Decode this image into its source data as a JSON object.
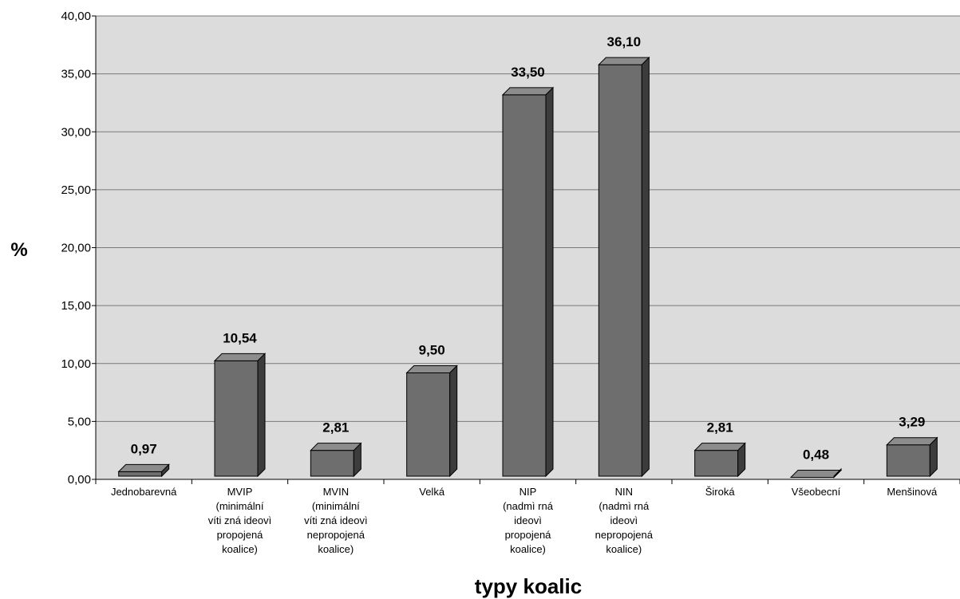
{
  "chart_data": {
    "type": "bar",
    "title": "",
    "xlabel": "typy koalic",
    "ylabel": "%",
    "ylim": [
      0,
      40
    ],
    "y_ticks": [
      "0,00",
      "5,00",
      "10,00",
      "15,00",
      "20,00",
      "25,00",
      "30,00",
      "35,00",
      "40,00"
    ],
    "grid": true,
    "legend": "none",
    "categories": [
      [
        "Jednobarevná"
      ],
      [
        "MVIP",
        "(minimální",
        "víti zná ideovì",
        "propojená",
        "koalice)"
      ],
      [
        "MVIN",
        "(minimální",
        "víti zná ideovì",
        "nepropojená",
        "koalice)"
      ],
      [
        "Velká"
      ],
      [
        "NIP",
        "(nadmì rná",
        "ideovì",
        "propojená",
        "koalice)"
      ],
      [
        "NIN",
        "(nadmì rná",
        "ideovì",
        "nepropojená",
        "koalice)"
      ],
      [
        "Široká"
      ],
      [
        "Všeobecní"
      ],
      [
        "Menšinová"
      ]
    ],
    "values": [
      0.97,
      10.54,
      2.81,
      9.5,
      33.5,
      36.1,
      2.81,
      0.48,
      3.29
    ],
    "value_labels": [
      "0,97",
      "10,54",
      "2,81",
      "9,50",
      "33,50",
      "36,10",
      "2,81",
      "0,48",
      "3,29"
    ],
    "colors": {
      "plot_background": "#dcdcdc",
      "grid": "#7a7a7a",
      "bar_front": "#6e6e6e",
      "bar_top": "#8c8c8c",
      "bar_side": "#3c3c3c"
    }
  }
}
